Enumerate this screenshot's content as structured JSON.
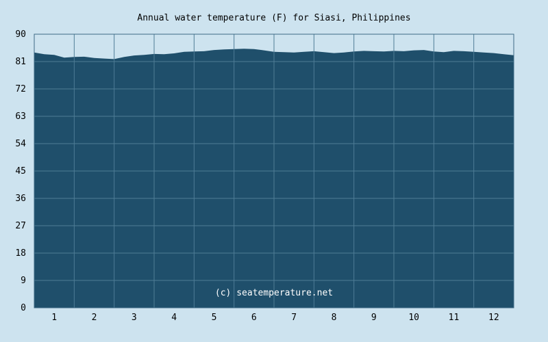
{
  "chart_data": {
    "type": "area",
    "title": "Annual water temperature (F) for Siasi, Philippines",
    "xlabel": "",
    "ylabel": "",
    "ylim": [
      0,
      90
    ],
    "y_ticks": [
      "0",
      "9",
      "18",
      "27",
      "36",
      "45",
      "54",
      "63",
      "72",
      "81",
      "90"
    ],
    "x_ticks": [
      "1",
      "2",
      "3",
      "4",
      "5",
      "6",
      "7",
      "8",
      "9",
      "10",
      "11",
      "12"
    ],
    "xlim": [
      0.5,
      12.5
    ],
    "grid": true,
    "x": [
      0.5,
      0.75,
      1.0,
      1.25,
      1.5,
      1.75,
      2.0,
      2.25,
      2.5,
      2.75,
      3.0,
      3.25,
      3.5,
      3.75,
      4.0,
      4.25,
      4.5,
      4.75,
      5.0,
      5.25,
      5.5,
      5.75,
      6.0,
      6.25,
      6.5,
      6.75,
      7.0,
      7.25,
      7.5,
      7.75,
      8.0,
      8.25,
      8.5,
      8.75,
      9.0,
      9.25,
      9.5,
      9.75,
      10.0,
      10.25,
      10.5,
      10.75,
      11.0,
      11.25,
      11.5,
      11.75,
      12.0,
      12.25,
      12.5
    ],
    "series": [
      {
        "values": [
          84.0,
          83.4,
          83.2,
          82.3,
          82.5,
          82.6,
          82.2,
          82.0,
          81.8,
          82.5,
          83.0,
          83.2,
          83.5,
          83.4,
          83.7,
          84.2,
          84.3,
          84.4,
          84.8,
          85.0,
          85.1,
          85.2,
          85.1,
          84.7,
          84.2,
          84.1,
          84.0,
          84.2,
          84.4,
          84.1,
          83.8,
          84.0,
          84.3,
          84.5,
          84.4,
          84.3,
          84.5,
          84.4,
          84.7,
          84.8,
          84.3,
          84.1,
          84.5,
          84.4,
          84.2,
          84.0,
          83.8,
          83.4,
          83.1
        ]
      }
    ],
    "annotation": "(c) seatemperature.net",
    "colors": {
      "background": "#cde3ef",
      "area_fill": "#1f4f6b",
      "grid": "#4f7c96",
      "plot_border": "#3d6a84",
      "annotation_text": "#ffffff"
    }
  }
}
